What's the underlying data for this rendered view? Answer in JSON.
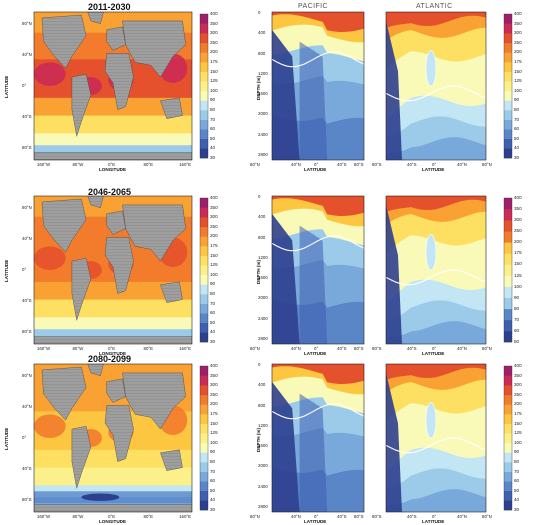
{
  "chart_data": [
    {
      "type": "heatmap",
      "panel": "map",
      "title": "2011-2030",
      "xlabel": "LONGITUDE",
      "ylabel": "LATITUDE",
      "x_ticks": [
        "160°W",
        "80°W",
        "0°E",
        "80°E",
        "160°E"
      ],
      "y_ticks": [
        "80°N",
        "40°N",
        "0°",
        "40°S",
        "80°S"
      ],
      "colorbar": {
        "levels": [
          30,
          40,
          50,
          60,
          70,
          80,
          90,
          100,
          125,
          150,
          175,
          200,
          250,
          300,
          350,
          400
        ]
      }
    },
    {
      "type": "heatmap",
      "panel": "section",
      "ocean_labels": [
        "PACIFIC",
        "ATLANTIC"
      ],
      "xlabel": "LATITUDE",
      "ylabel": "DEPTH (m)",
      "x_ticks_pacific": [
        "80°N",
        "40°N",
        "0°",
        "40°S",
        "80°S"
      ],
      "x_ticks_atlantic": [
        "80°S",
        "40°S",
        "0°",
        "40°N",
        "80°N"
      ],
      "y_ticks": [
        "0",
        "400",
        "800",
        "1200",
        "1600",
        "2000",
        "2400",
        "2800"
      ],
      "colorbar": {
        "levels": [
          30,
          40,
          50,
          60,
          70,
          80,
          90,
          100,
          125,
          150,
          175,
          200,
          250,
          300,
          350,
          400
        ]
      }
    },
    {
      "type": "heatmap",
      "panel": "map",
      "title": "2046-2065",
      "xlabel": "LONGITUDE",
      "ylabel": "LATITUDE",
      "x_ticks": [
        "160°W",
        "80°W",
        "0°E",
        "80°E",
        "160°E"
      ],
      "y_ticks": [
        "80°N",
        "40°N",
        "0°",
        "40°S",
        "80°S"
      ],
      "colorbar": {
        "levels": [
          30,
          40,
          50,
          60,
          70,
          80,
          90,
          100,
          125,
          150,
          175,
          200,
          250,
          300,
          350,
          400
        ]
      }
    },
    {
      "type": "heatmap",
      "panel": "section",
      "xlabel": "LATITUDE",
      "ylabel": "DEPTH (m)",
      "x_ticks_pacific": [
        "80°N",
        "40°N",
        "0°",
        "40°S",
        "80°S"
      ],
      "x_ticks_atlantic": [
        "80°S",
        "40°S",
        "0°",
        "40°N",
        "80°N"
      ],
      "y_ticks": [
        "0",
        "400",
        "800",
        "1200",
        "1600",
        "2000",
        "2400",
        "2800"
      ],
      "colorbar": {
        "levels": [
          50,
          60,
          70,
          80,
          90,
          100,
          125,
          150,
          175,
          200,
          250,
          300,
          350,
          400
        ]
      }
    },
    {
      "type": "heatmap",
      "panel": "map",
      "title": "2080-2099",
      "xlabel": "LONGITUDE",
      "ylabel": "LATITUDE",
      "x_ticks": [
        "160°W",
        "80°W",
        "0°E",
        "80°E",
        "160°E"
      ],
      "y_ticks": [
        "80°N",
        "40°N",
        "0°",
        "40°S",
        "80°S"
      ],
      "colorbar": {
        "levels": [
          30,
          40,
          50,
          60,
          70,
          80,
          90,
          100,
          125,
          150,
          175,
          200,
          250,
          300,
          350,
          400
        ]
      }
    },
    {
      "type": "heatmap",
      "panel": "section",
      "xlabel": "LATITUDE",
      "ylabel": "DEPTH (m)",
      "x_ticks_pacific": [
        "80°N",
        "40°N",
        "0°",
        "40°S",
        "80°S"
      ],
      "x_ticks_atlantic": [
        "80°S",
        "40°S",
        "0°",
        "40°N",
        "80°N"
      ],
      "y_ticks": [
        "0",
        "400",
        "800",
        "1200",
        "1600",
        "2000",
        "2400",
        "2800"
      ],
      "colorbar": {
        "levels": [
          30,
          40,
          50,
          60,
          70,
          80,
          90,
          100,
          125,
          150,
          175,
          200,
          250,
          300,
          350,
          400
        ]
      }
    }
  ],
  "colors": {
    "ramp": [
      "#2d3f8f",
      "#3e5eb0",
      "#5a86c8",
      "#79a9da",
      "#9ccbea",
      "#c3e6f5",
      "#fafab8",
      "#fbf08a",
      "#fde062",
      "#fcc640",
      "#f9a233",
      "#f27b2c",
      "#e5512c",
      "#cb2b54",
      "#a01f6a"
    ],
    "land": "#9e9e9e",
    "land_shade": "#7b7b7b"
  }
}
